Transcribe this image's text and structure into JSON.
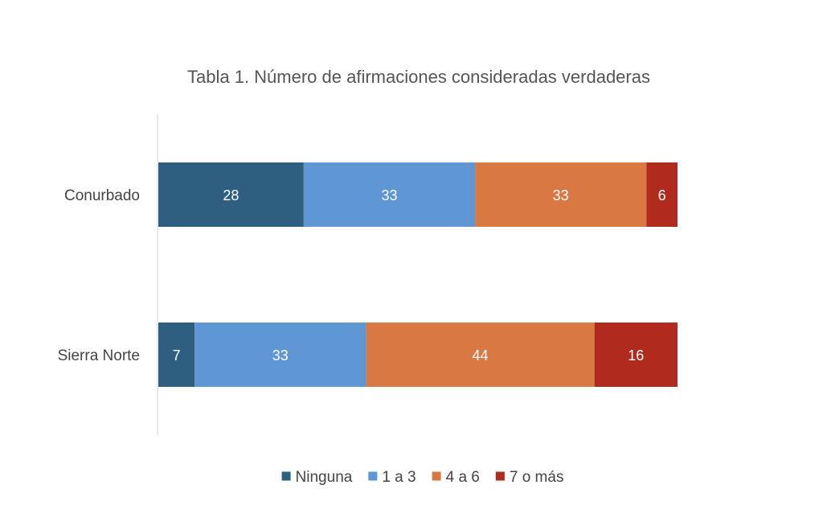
{
  "chart_data": {
    "type": "bar",
    "orientation": "horizontal",
    "stacked": true,
    "title": "Tabla 1. Número de afirmaciones consideradas verdaderas",
    "xlabel": "",
    "ylabel": "",
    "xlim": [
      0,
      100
    ],
    "grid": false,
    "legend_position": "bottom",
    "categories": [
      "Conurbado",
      "Sierra Norte"
    ],
    "series": [
      {
        "name": "Ninguna",
        "color": "#2e5f80",
        "values": [
          28,
          7
        ]
      },
      {
        "name": "1 a 3",
        "color": "#5f96d4",
        "values": [
          33,
          33
        ]
      },
      {
        "name": "4 a 6",
        "color": "#d97843",
        "values": [
          33,
          44
        ]
      },
      {
        "name": "7 o más",
        "color": "#b02a1e",
        "values": [
          6,
          16
        ]
      }
    ]
  }
}
